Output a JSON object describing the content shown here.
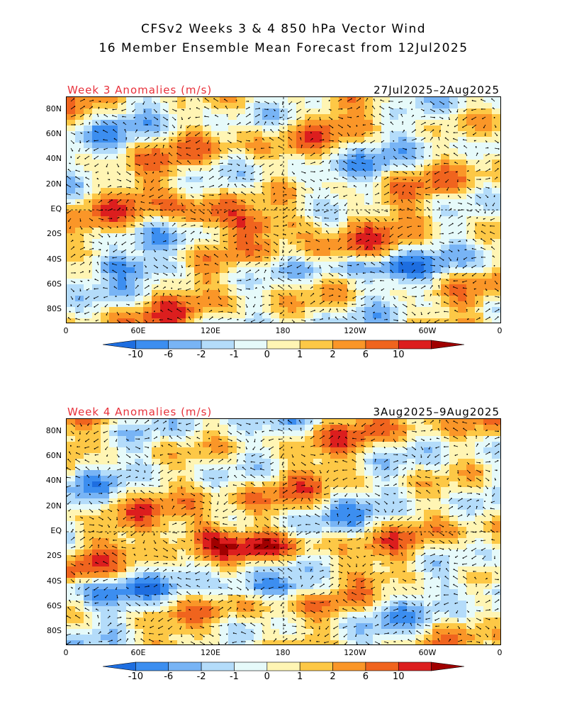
{
  "title": {
    "line1": "CFSv2 Weeks 3 & 4 850 hPa Vector Wind",
    "line2": "16 Member Ensemble Mean Forecast from 12Jul2025"
  },
  "panels": [
    {
      "label": "Week 3 Anomalies (m/s)",
      "dates": "27Jul2025–2Aug2025"
    },
    {
      "label": "Week 4 Anomalies (m/s)",
      "dates": "3Aug2025–9Aug2025"
    }
  ],
  "lat_labels": [
    "80N",
    "60N",
    "40N",
    "20N",
    "EQ",
    "20S",
    "40S",
    "60S",
    "80S"
  ],
  "lon_labels": [
    "0",
    "60E",
    "120E",
    "180",
    "120W",
    "60W",
    "0"
  ],
  "colorbar": {
    "levels": [
      "-10",
      "-6",
      "-2",
      "-1",
      "0",
      "1",
      "2",
      "6",
      "10"
    ],
    "colors": [
      "#1e6ee0",
      "#3c8ef0",
      "#78b4f5",
      "#b4dcfa",
      "#e6fafa",
      "#fff5b4",
      "#fdc846",
      "#fa9628",
      "#f0641e",
      "#dc1e1e",
      "#a00000"
    ]
  }
}
